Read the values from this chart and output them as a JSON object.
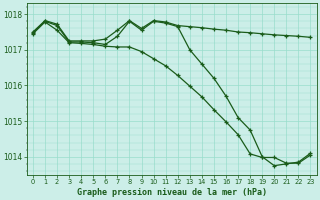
{
  "title": "Graphe pression niveau de la mer (hPa)",
  "bg_color": "#cceee8",
  "grid_color": "#99ddcc",
  "line_color": "#1a5c1a",
  "x_labels": [
    "0",
    "1",
    "2",
    "3",
    "4",
    "5",
    "6",
    "7",
    "8",
    "9",
    "10",
    "11",
    "12",
    "13",
    "14",
    "15",
    "16",
    "17",
    "18",
    "19",
    "20",
    "21",
    "22",
    "23"
  ],
  "top_line": [
    1017.5,
    1017.82,
    1017.72,
    1017.25,
    1017.25,
    1017.25,
    1017.3,
    1017.55,
    1017.82,
    1017.6,
    1017.82,
    1017.78,
    1017.68,
    1017.65,
    1017.62,
    1017.58,
    1017.55,
    1017.5,
    1017.48,
    1017.45,
    1017.42,
    1017.4,
    1017.38,
    1017.35
  ],
  "mid_line": [
    1017.48,
    1017.8,
    1017.68,
    1017.22,
    1017.22,
    1017.2,
    1017.15,
    1017.38,
    1017.8,
    1017.55,
    1017.8,
    1017.75,
    1017.65,
    1017.0,
    1016.6,
    1016.2,
    1015.7,
    1015.1,
    1014.75,
    1014.0,
    1013.75,
    1013.8,
    1013.85,
    1014.1
  ],
  "bot_line": [
    1017.45,
    1017.78,
    1017.55,
    1017.2,
    1017.18,
    1017.15,
    1017.1,
    1017.08,
    1017.08,
    1016.95,
    1016.75,
    1016.55,
    1016.28,
    1015.98,
    1015.68,
    1015.32,
    1014.98,
    1014.62,
    1014.08,
    1013.98,
    1013.98,
    1013.82,
    1013.82,
    1014.05
  ],
  "ylim": [
    1013.5,
    1018.3
  ],
  "yticks": [
    1014,
    1015,
    1016,
    1017,
    1018
  ],
  "xlim": [
    -0.5,
    23.5
  ]
}
